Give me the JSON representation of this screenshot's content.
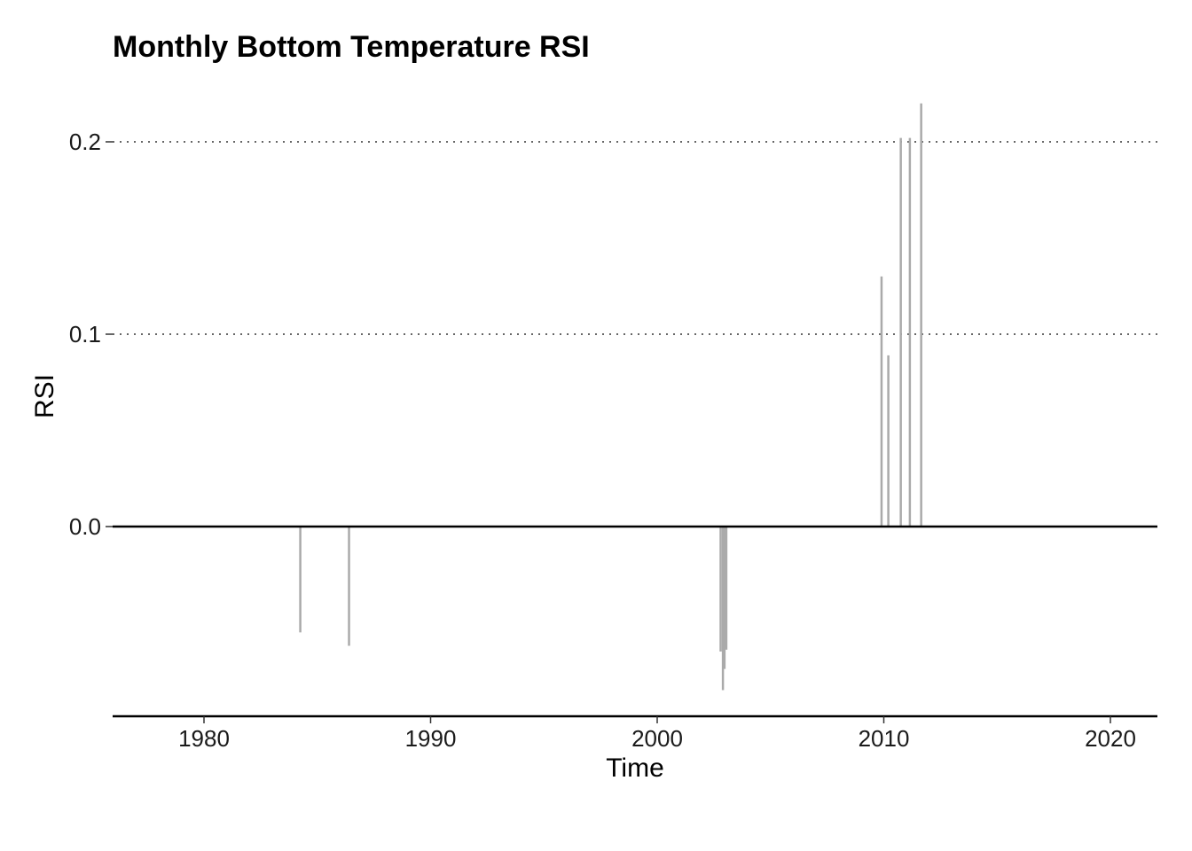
{
  "chart_data": {
    "type": "line",
    "title": "Monthly Bottom Temperature RSI",
    "xlabel": "Time",
    "ylabel": "RSI",
    "xlim": [
      1976,
      2022
    ],
    "ylim": [
      -0.099,
      0.2
    ],
    "x_ticks": [
      1980,
      1990,
      2000,
      2010,
      2020
    ],
    "x_tick_labels": [
      "1980",
      "1990",
      "2000",
      "2010",
      "2020"
    ],
    "y_ticks": [
      0.0,
      0.1,
      0.2
    ],
    "y_tick_labels": [
      "0.0",
      "0.1",
      "0.2"
    ],
    "grid": "horizontal dotted at 0.1 and 0.2",
    "legend": "none",
    "baseline": 0.0,
    "series_color": "#aaaaaa",
    "baseline_color": "#000000",
    "x_range": [
      1978.0,
      2019.9
    ],
    "spikes": [
      {
        "x": 1984.25,
        "y": -0.055
      },
      {
        "x": 1986.4,
        "y": -0.062
      },
      {
        "x": 2002.8,
        "y": -0.065
      },
      {
        "x": 2002.9,
        "y": -0.085
      },
      {
        "x": 2002.97,
        "y": -0.074
      },
      {
        "x": 2003.05,
        "y": -0.064
      },
      {
        "x": 2009.9,
        "y": 0.13
      },
      {
        "x": 2010.2,
        "y": 0.089
      },
      {
        "x": 2010.75,
        "y": 0.202
      },
      {
        "x": 2011.05,
        "y": 0.0
      },
      {
        "x": 2011.15,
        "y": 0.202
      },
      {
        "x": 2011.65,
        "y": 0.22
      }
    ]
  }
}
